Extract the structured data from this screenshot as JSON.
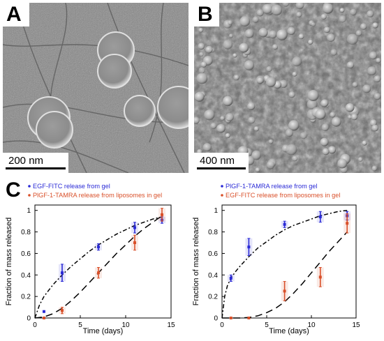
{
  "panels": {
    "a": {
      "letter": "A",
      "scale_label": "200 nm"
    },
    "b": {
      "letter": "B",
      "scale_label": "400 nm"
    },
    "c": {
      "letter": "C"
    }
  },
  "chart_data": [
    {
      "type": "scatter",
      "xlabel": "Time (days)",
      "ylabel": "Fraction of mass released",
      "xlim": [
        0,
        15
      ],
      "ylim": [
        0,
        1.05
      ],
      "xticks": [
        "0",
        "5",
        "10",
        "15"
      ],
      "yticks": [
        "0",
        "0.2",
        "0.4",
        "0.6",
        "0.8",
        "1"
      ],
      "legend_position": "top-left",
      "series": [
        {
          "name": "EGF-FITC release from gel",
          "color": "#2a2ad6",
          "x": [
            1,
            3,
            7,
            11,
            14
          ],
          "y": [
            0.06,
            0.42,
            0.66,
            0.84,
            0.91
          ],
          "err": [
            0.0,
            0.08,
            0.03,
            0.05,
            0.03
          ],
          "fit": [
            [
              0,
              0
            ],
            [
              0.5,
              0.12
            ],
            [
              1,
              0.2
            ],
            [
              2,
              0.31
            ],
            [
              3,
              0.4
            ],
            [
              4,
              0.48
            ],
            [
              5,
              0.55
            ],
            [
              6,
              0.62
            ],
            [
              7,
              0.68
            ],
            [
              8,
              0.73
            ],
            [
              9,
              0.78
            ],
            [
              10,
              0.82
            ],
            [
              11,
              0.86
            ],
            [
              12,
              0.89
            ],
            [
              13,
              0.92
            ],
            [
              14,
              0.94
            ]
          ],
          "fit_style": "dash-dot"
        },
        {
          "name": "PlGF-1-TAMRA release from liposomes in gel",
          "color": "#d9502a",
          "x": [
            1,
            3,
            7,
            11,
            14
          ],
          "y": [
            0.0,
            0.07,
            0.42,
            0.7,
            0.96
          ],
          "err": [
            0.0,
            0.03,
            0.05,
            0.07,
            0.06
          ],
          "fit": [
            [
              0,
              0
            ],
            [
              1,
              0.01
            ],
            [
              2,
              0.04
            ],
            [
              3,
              0.09
            ],
            [
              4,
              0.16
            ],
            [
              5,
              0.24
            ],
            [
              6,
              0.33
            ],
            [
              7,
              0.42
            ],
            [
              8,
              0.51
            ],
            [
              9,
              0.6
            ],
            [
              10,
              0.68
            ],
            [
              11,
              0.76
            ],
            [
              12,
              0.83
            ],
            [
              13,
              0.89
            ],
            [
              14,
              0.95
            ]
          ],
          "fit_style": "dash"
        }
      ]
    },
    {
      "type": "scatter",
      "xlabel": "Time (days)",
      "ylabel": "Fraction of mass released",
      "xlim": [
        0,
        15
      ],
      "ylim": [
        0,
        1.05
      ],
      "xticks": [
        "0",
        "5",
        "10",
        "15"
      ],
      "yticks": [
        "0",
        "0.2",
        "0.4",
        "0.6",
        "0.8",
        "1"
      ],
      "legend_position": "top-left",
      "series": [
        {
          "name": "PlGF-1-TAMRA release from gel",
          "color": "#2a2ad6",
          "x": [
            1,
            3,
            7,
            11,
            14
          ],
          "y": [
            0.37,
            0.66,
            0.87,
            0.94,
            0.95
          ],
          "err": [
            0.03,
            0.08,
            0.03,
            0.05,
            0.04
          ],
          "fit": [
            [
              0,
              0
            ],
            [
              0.3,
              0.2
            ],
            [
              0.6,
              0.3
            ],
            [
              1,
              0.37
            ],
            [
              1.5,
              0.43
            ],
            [
              2,
              0.48
            ],
            [
              3,
              0.57
            ],
            [
              4,
              0.65
            ],
            [
              5,
              0.71
            ],
            [
              6,
              0.77
            ],
            [
              7,
              0.82
            ],
            [
              8,
              0.86
            ],
            [
              9,
              0.89
            ],
            [
              10,
              0.92
            ],
            [
              11,
              0.95
            ],
            [
              12,
              0.97
            ],
            [
              13,
              0.99
            ],
            [
              14,
              1.0
            ]
          ],
          "fit_style": "dash-dot"
        },
        {
          "name": "EGF-FITC release from liposomes in gel",
          "color": "#d9502a",
          "x": [
            1,
            3,
            7,
            11,
            14
          ],
          "y": [
            0.0,
            0.0,
            0.25,
            0.38,
            0.88
          ],
          "err": [
            0.0,
            0.0,
            0.09,
            0.09,
            0.09
          ],
          "fit": [
            [
              0,
              0
            ],
            [
              2,
              0
            ],
            [
              3,
              0.005
            ],
            [
              4,
              0.02
            ],
            [
              5,
              0.05
            ],
            [
              6,
              0.09
            ],
            [
              7,
              0.15
            ],
            [
              8,
              0.23
            ],
            [
              9,
              0.32
            ],
            [
              10,
              0.42
            ],
            [
              11,
              0.52
            ],
            [
              12,
              0.62
            ],
            [
              13,
              0.71
            ],
            [
              14,
              0.8
            ]
          ],
          "fit_style": "dash"
        }
      ]
    }
  ]
}
